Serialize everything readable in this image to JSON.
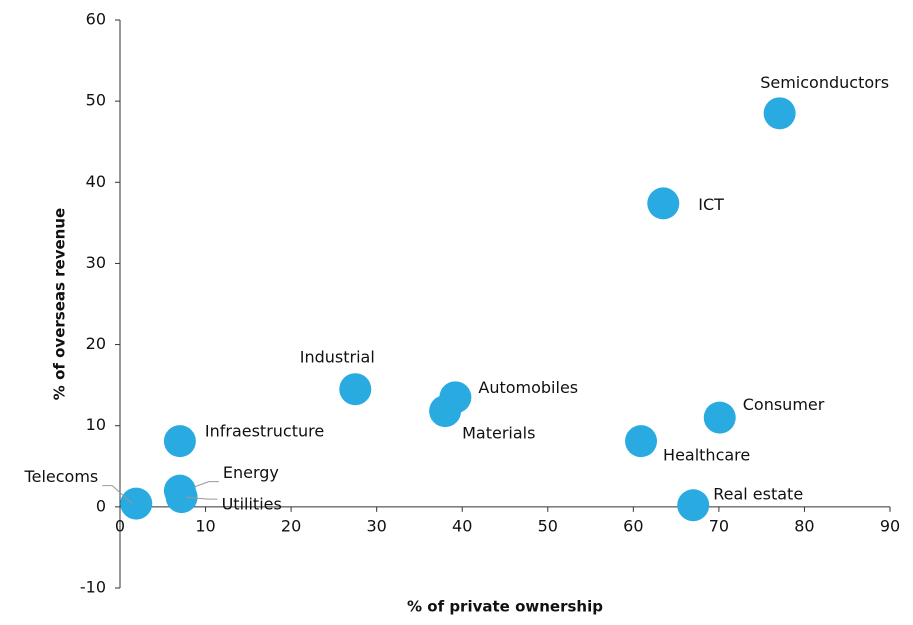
{
  "chart_data": {
    "type": "scatter",
    "xlabel": "% of private ownership",
    "ylabel": "% of overseas revenue",
    "labels": [
      "Semiconductors",
      "ICT",
      "Industrial",
      "Automobiles",
      "Materials",
      "Consumer",
      "Healthcare",
      "Infraestructure",
      "Energy",
      "Utilities",
      "Telecoms",
      "Real estate"
    ],
    "x": [
      77.1,
      63.5,
      27.5,
      39.2,
      38,
      70.1,
      60.9,
      7,
      7,
      7.2,
      1.9,
      67
    ],
    "values": [
      48.5,
      37.4,
      14.5,
      13.5,
      11.8,
      11,
      8.1,
      8.1,
      2,
      1.2,
      0.4,
      0.2
    ],
    "color": "#29abe2",
    "xlim": [
      0,
      90
    ],
    "xticks": [
      0,
      10,
      20,
      30,
      40,
      50,
      60,
      70,
      80,
      90
    ],
    "ylim": [
      -10,
      60
    ],
    "yticks": [
      -10,
      0,
      10,
      20,
      30,
      40,
      50,
      60
    ],
    "grid": false
  }
}
